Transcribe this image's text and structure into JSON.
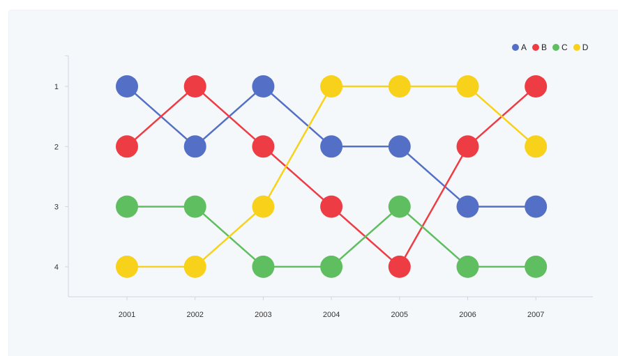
{
  "chart_data": {
    "type": "line",
    "title": "",
    "xlabel": "",
    "ylabel": "",
    "categories": [
      "2001",
      "2002",
      "2003",
      "2004",
      "2005",
      "2006",
      "2007"
    ],
    "y_ticks": [
      "1",
      "2",
      "3",
      "4"
    ],
    "ylim": [
      1,
      4
    ],
    "y_inverted": true,
    "legend_position": "top-right",
    "grid": false,
    "series": [
      {
        "name": "A",
        "color": "#5470c6",
        "values": [
          1,
          2,
          1,
          2,
          2,
          3,
          3
        ]
      },
      {
        "name": "B",
        "color": "#ee3c44",
        "values": [
          2,
          1,
          2,
          3,
          4,
          2,
          1
        ]
      },
      {
        "name": "C",
        "color": "#5fbe5f",
        "values": [
          3,
          3,
          4,
          4,
          3,
          4,
          4
        ]
      },
      {
        "name": "D",
        "color": "#f8d11a",
        "values": [
          4,
          4,
          3,
          1,
          1,
          1,
          2
        ]
      }
    ]
  }
}
